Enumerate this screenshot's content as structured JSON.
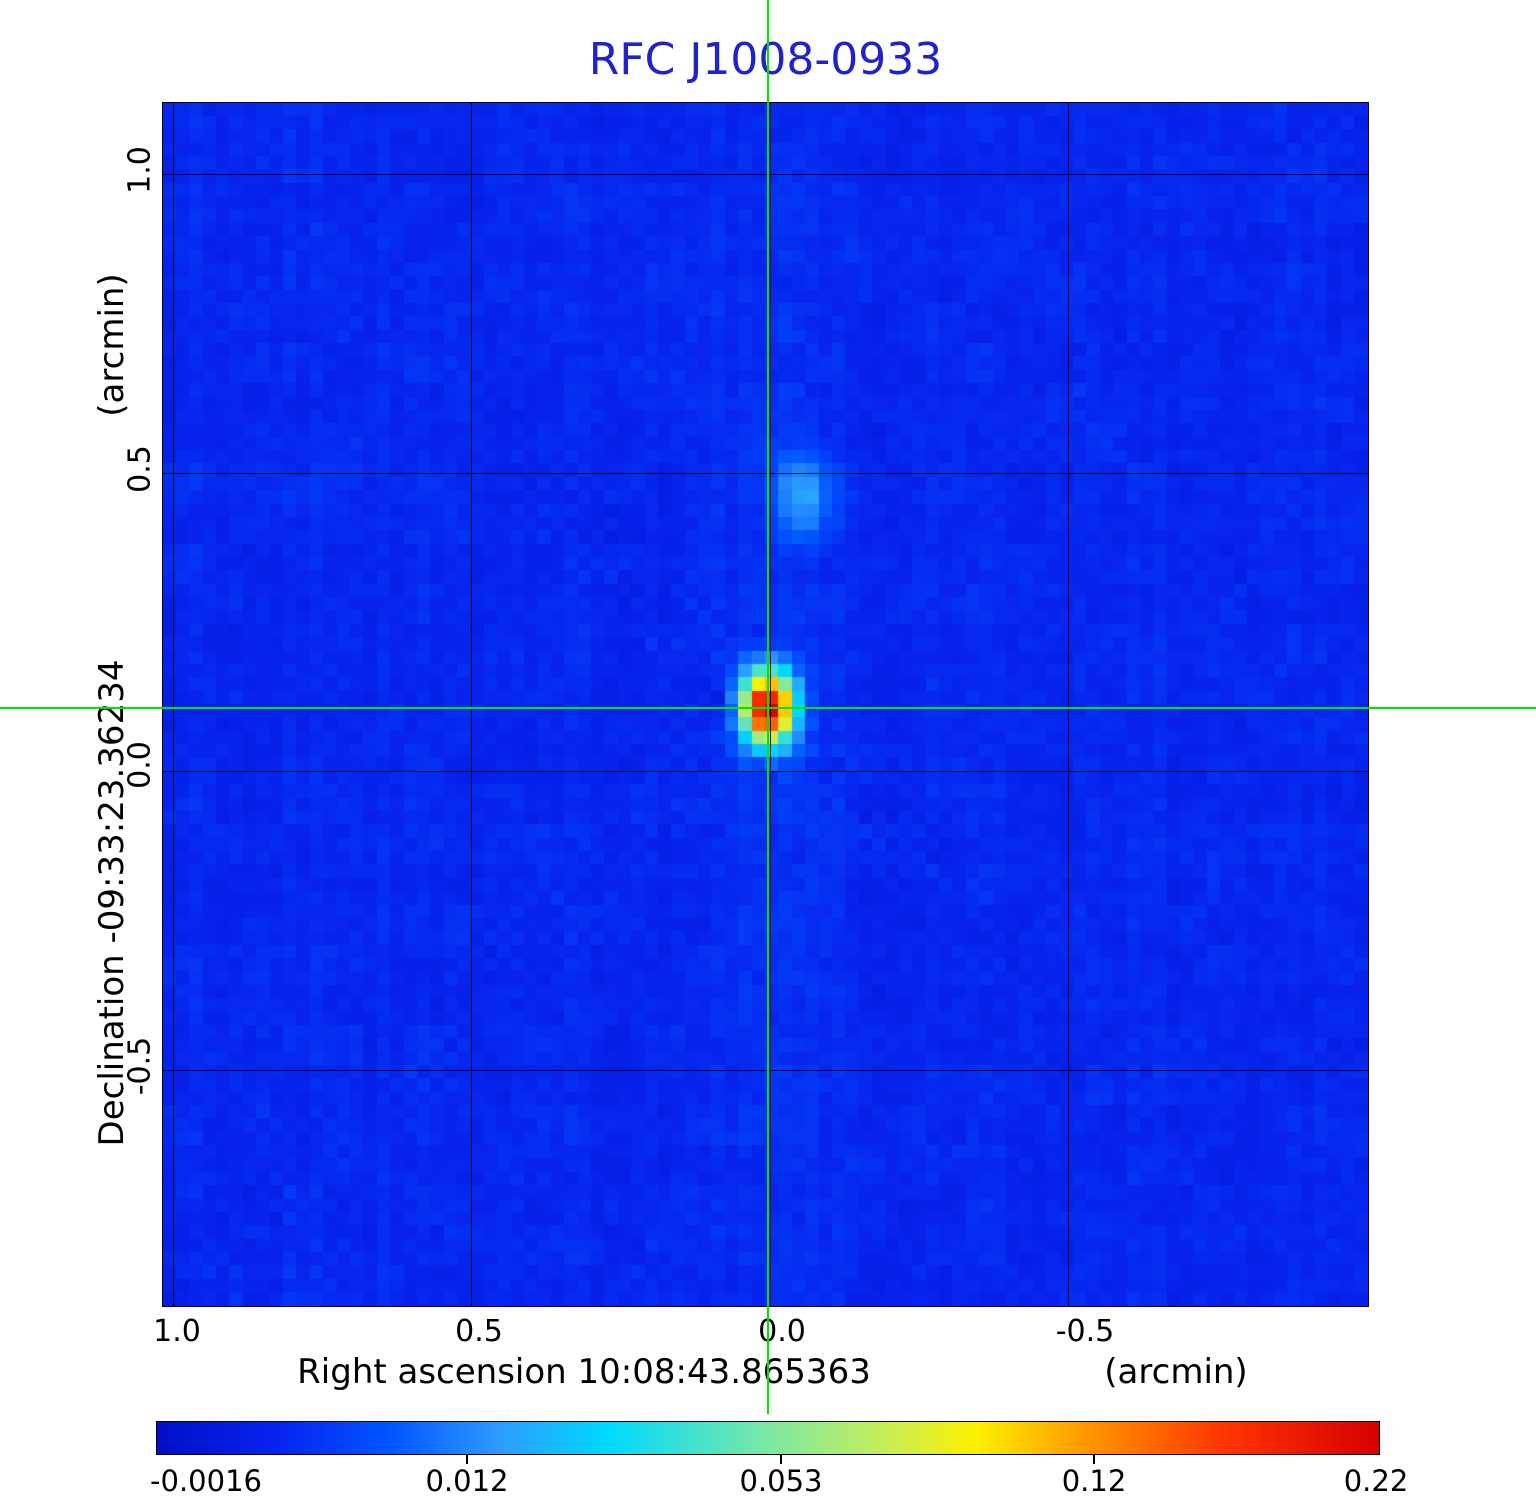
{
  "title": {
    "text": "RFC J1008-0933",
    "color": "#2222cd"
  },
  "axes": {
    "y": {
      "unit_label": "(arcmin)",
      "name_label": "Declination  -09:33:23.36234",
      "ticks": [
        "1.0",
        "0.5",
        "0.0",
        "-0.5"
      ]
    },
    "x": {
      "name_label": "Right ascension  10:08:43.865363",
      "unit_label": "(arcmin)",
      "ticks": [
        "1.0",
        "0.5",
        "0.0",
        "-0.5"
      ]
    }
  },
  "colorbar": {
    "tick_labels": [
      "-0.0016",
      "0.012",
      "0.053",
      "0.12",
      "0.22"
    ]
  },
  "crosshair": {
    "color": "#00e400"
  },
  "chart_data": {
    "type": "heatmap",
    "title": "RFC J1008-0933",
    "xlabel": "Right ascension 10:08:43.865363 (arcmin)",
    "ylabel": "Declination -09:33:23.36234 (arcmin)",
    "x_range_arcmin": [
      1.02,
      -1.0
    ],
    "y_range_arcmin": [
      -0.9,
      1.12
    ],
    "x_ticks_arcmin": [
      1.0,
      0.5,
      0.0,
      -0.5
    ],
    "y_ticks_arcmin": [
      1.0,
      0.5,
      0.0,
      -0.5
    ],
    "grid": true,
    "intensity_scale": "sqrt",
    "colorbar_ticks_jy_per_beam": [
      -0.0016,
      0.012,
      0.053,
      0.12,
      0.22
    ],
    "colormap": "jet",
    "colormap_stops": [
      [
        0.0,
        "#000fc8"
      ],
      [
        0.1,
        "#0724ee"
      ],
      [
        0.19,
        "#0055ff"
      ],
      [
        0.28,
        "#2e9bff"
      ],
      [
        0.37,
        "#00d9ff"
      ],
      [
        0.5,
        "#7ce8a4"
      ],
      [
        0.6,
        "#c9ee55"
      ],
      [
        0.67,
        "#fdf000"
      ],
      [
        0.76,
        "#ff9800"
      ],
      [
        0.87,
        "#ff3700"
      ],
      [
        1.0,
        "#d40000"
      ]
    ],
    "background_color": "#0724ee",
    "background_level_frac": 0.105,
    "crosshair_position": {
      "x_arcmin": 0.0,
      "y_arcmin": 0.105
    },
    "sources": [
      {
        "label": "primary-target",
        "x_arcmin": 0.003,
        "y_arcmin": 0.105,
        "peak_jy_per_beam": 0.22,
        "sigma_arcmin": [
          0.032,
          0.045
        ]
      },
      {
        "label": "secondary-component",
        "x_arcmin": -0.055,
        "y_arcmin": 0.46,
        "peak_jy_per_beam": 0.016,
        "sigma_arcmin": [
          0.035,
          0.05
        ]
      }
    ]
  }
}
